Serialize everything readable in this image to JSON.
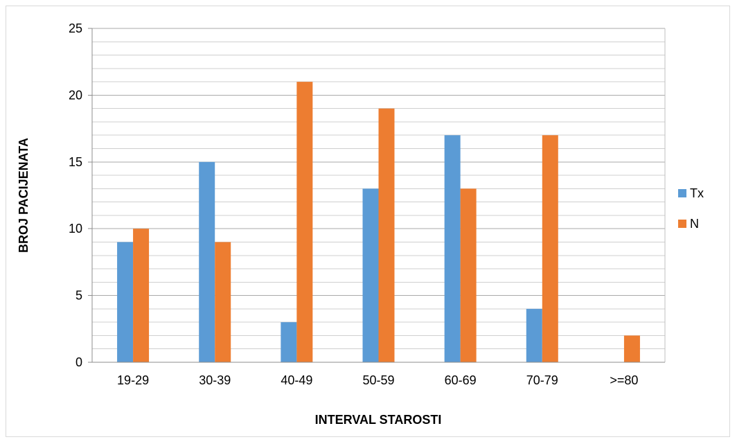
{
  "chart_data": {
    "type": "bar",
    "title": "",
    "xlabel": "INTERVAL STAROSTI",
    "ylabel": "BROJ PACIJENATA",
    "categories": [
      "19-29",
      "30-39",
      "40-49",
      "50-59",
      "60-69",
      "70-79",
      ">=80"
    ],
    "series": [
      {
        "name": "Tx",
        "color": "#5b9bd5",
        "values": [
          9,
          15,
          3,
          13,
          17,
          4,
          0
        ]
      },
      {
        "name": "N",
        "color": "#ed7d31",
        "values": [
          10,
          9,
          21,
          19,
          13,
          17,
          2
        ]
      }
    ],
    "ylim": [
      0,
      25
    ],
    "yticks": [
      0,
      5,
      10,
      15,
      20,
      25
    ],
    "minor_grid_step": 1,
    "grid": true,
    "legend_position": "right"
  }
}
